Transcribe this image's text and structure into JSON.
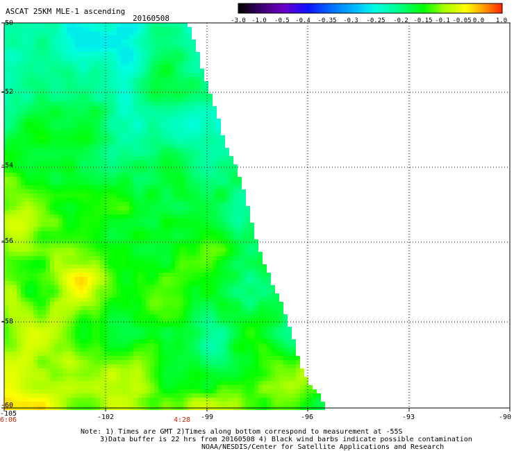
{
  "header": {
    "title": "ASCAT 25KM MLE-1 ascending",
    "date": "20160508"
  },
  "colorbar": {
    "labels": [
      "-3.0",
      "-1.0",
      "-0.5",
      "-0.4",
      "-0.35",
      "-0.3",
      "-0.25",
      "-0.2",
      "-0.15",
      "-0.1",
      "-0.05",
      "0.0",
      "1.0"
    ],
    "colors": [
      "#000000",
      "#3a006b",
      "#6a00c8",
      "#1010ff",
      "#0077ff",
      "#00c8ff",
      "#00ffe0",
      "#00ff90",
      "#00ff00",
      "#aaff00",
      "#ffff00",
      "#ff9900",
      "#ff2000"
    ]
  },
  "axes": {
    "lat_labels": [
      "-50",
      "-52",
      "-54",
      "-56",
      "-58",
      "-60"
    ],
    "lon_labels": [
      "-105",
      "-102",
      "-99",
      "-96",
      "-93",
      "-90"
    ]
  },
  "time_labels": [
    "6:06",
    "4:28"
  ],
  "notes": [
    "Note: 1) Times are GMT 2)Times along bottom correspond to measurement at -55S",
    "3)Data buffer is 22 hrs from 20160508 4) Black wind barbs indicate possible contamination",
    "NOAA/NESDIS/Center for Satellite Applications and Research"
  ]
}
